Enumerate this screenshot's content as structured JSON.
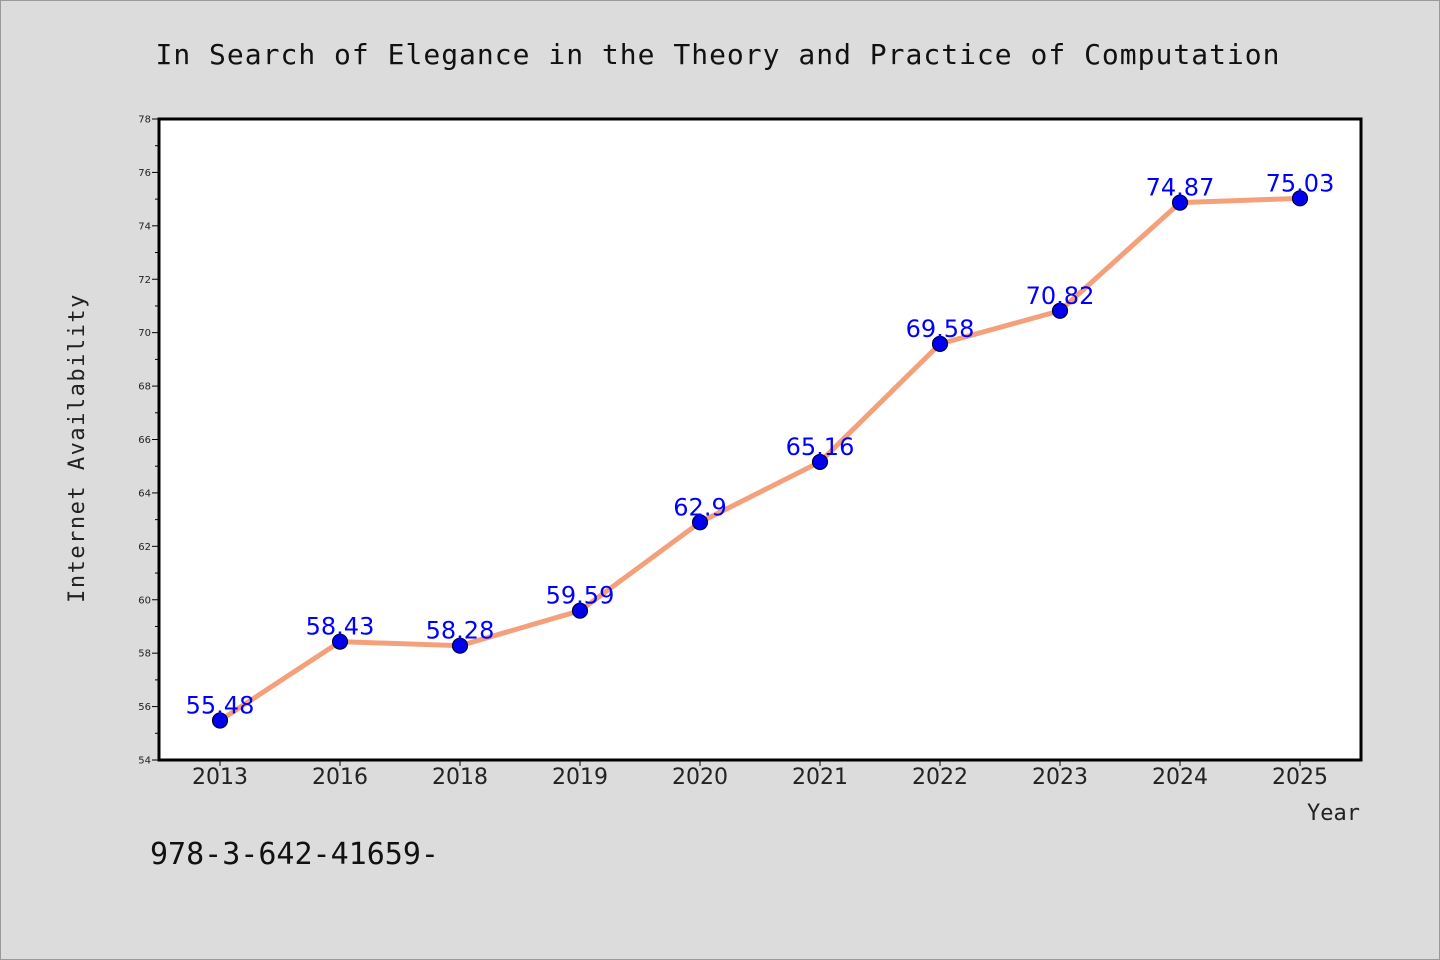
{
  "chart_data": {
    "type": "line",
    "title": "In Search of Elegance in the Theory and Practice of Computation",
    "xlabel": "Year",
    "ylabel": "Internet Availability",
    "categories": [
      "2013",
      "2016",
      "2018",
      "2019",
      "2020",
      "2021",
      "2022",
      "2023",
      "2024",
      "2025"
    ],
    "series": [
      {
        "values": [
          55.48,
          58.43,
          58.28,
          59.59,
          62.9,
          65.16,
          69.58,
          70.82,
          74.87,
          75.03
        ],
        "value_labels": [
          "55.48",
          "58.43",
          "58.28",
          "59.59",
          "62.9",
          "65.16",
          "69.58",
          "70.82",
          "74.87",
          "75.03"
        ],
        "line_color": "#f4a07a",
        "marker_color": "#0000ee"
      }
    ],
    "ylim": [
      54,
      78
    ],
    "yticks": [
      "54",
      "56",
      "58",
      "60",
      "62",
      "64",
      "66",
      "68",
      "70",
      "72",
      "74",
      "76",
      "78"
    ],
    "grid": false,
    "legend": "none",
    "label_color": "#0000ff",
    "background": "#dcdcdc",
    "plot_background": "#ffffff"
  },
  "footer": {
    "note": "978-3-642-41659-"
  }
}
